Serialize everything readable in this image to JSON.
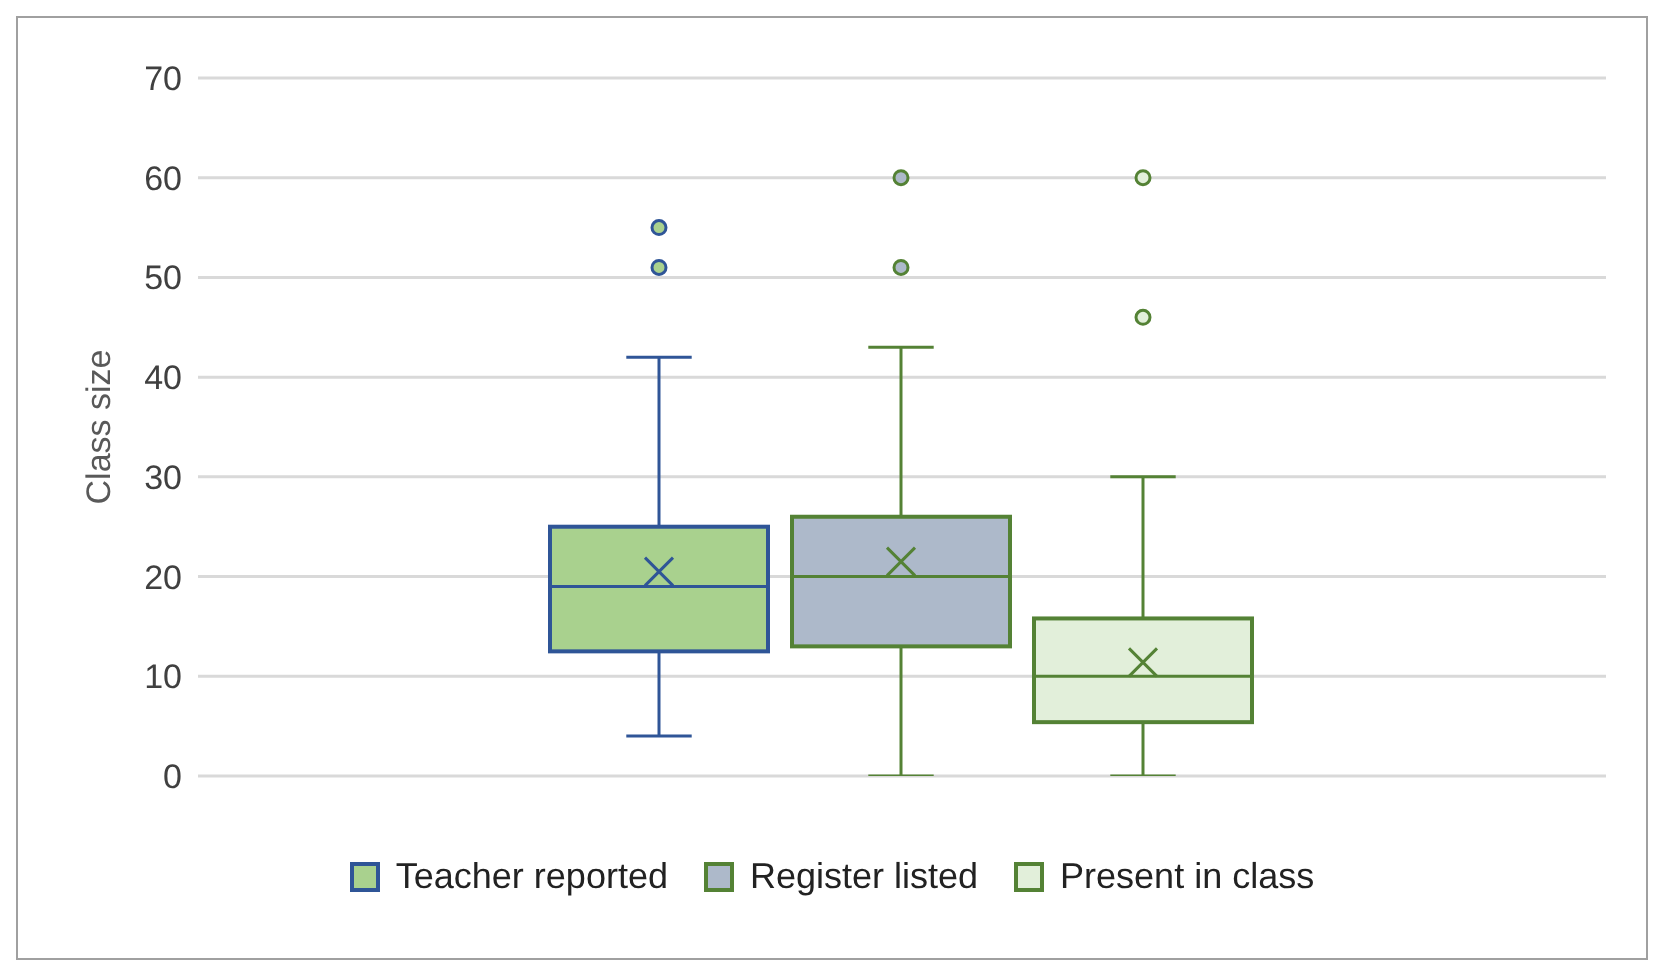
{
  "chart_data": {
    "type": "box",
    "ylabel": "Class size",
    "categories": [
      null
    ],
    "ylim": [
      0,
      70
    ],
    "yticks": [
      0,
      10,
      20,
      30,
      40,
      50,
      60,
      70
    ],
    "grid": "y",
    "legend": "bottom",
    "series": [
      {
        "name": "Teacher reported",
        "color": "#a9d18e",
        "boxes": [
          {
            "low": 4,
            "q1": 12.5,
            "median": 19,
            "q3": 25,
            "high": 42,
            "mean": 20.5,
            "outliers": [
              51,
              55
            ]
          }
        ]
      },
      {
        "name": "Register listed",
        "color": "#adb9ca",
        "boxes": [
          {
            "low": 0,
            "q1": 13,
            "median": 20,
            "q3": 26,
            "high": 43,
            "mean": 21.5,
            "outliers": [
              51,
              60
            ]
          }
        ]
      },
      {
        "name": "Present in class",
        "color": "#e2efda",
        "boxes": [
          {
            "low": 0,
            "q1": 5.4,
            "median": 10,
            "q3": 15.8,
            "high": 30,
            "mean": 11.4,
            "outliers": [
              46,
              60
            ]
          }
        ]
      }
    ]
  }
}
